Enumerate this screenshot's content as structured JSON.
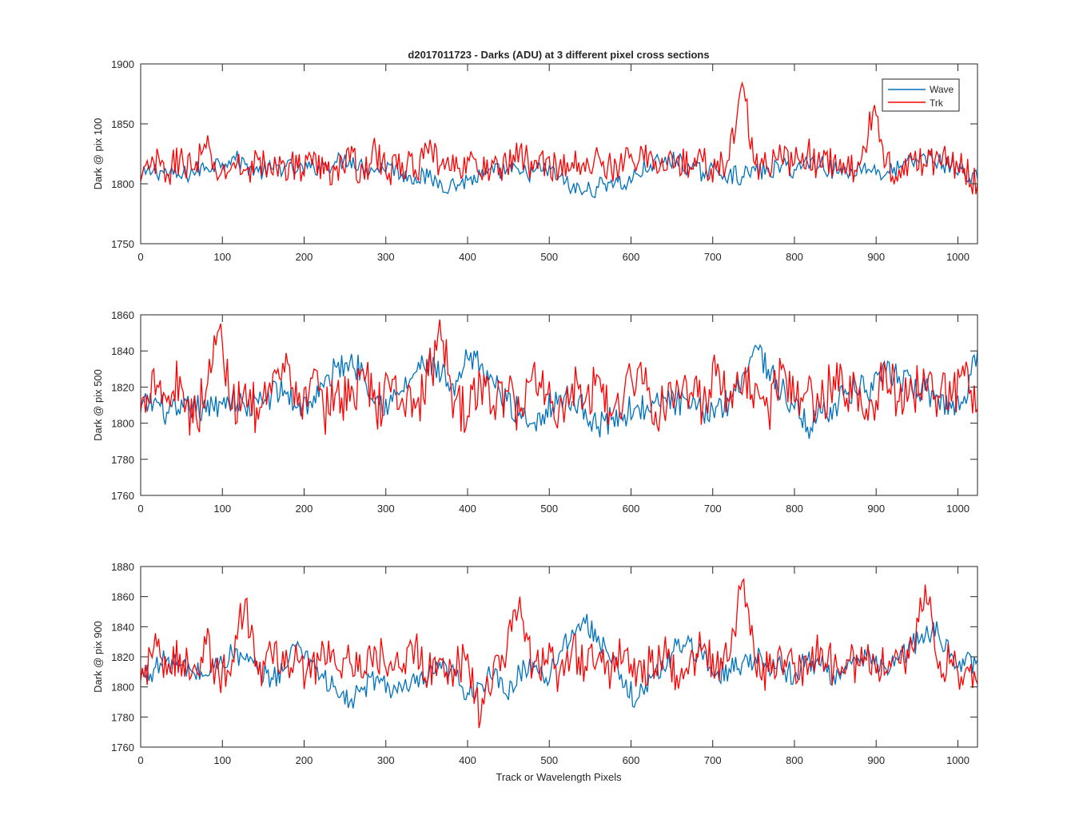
{
  "figure": {
    "title": "d2017011723 - Darks (ADU) at 3 different pixel cross sections",
    "xlabel": "Track or Wavelength Pixels"
  },
  "colors": {
    "wave": "#0072BD",
    "trk": "#FF0000",
    "axis": "#262626"
  },
  "legend": {
    "entries": [
      "Wave",
      "Trk"
    ],
    "location": "top-right of first panel"
  },
  "chart_data": [
    {
      "type": "line",
      "ylabel": "Dark @ pix 100",
      "xlim": [
        0,
        1024
      ],
      "ylim": [
        1750,
        1900
      ],
      "xticks": [
        0,
        100,
        200,
        300,
        400,
        500,
        600,
        700,
        800,
        900,
        1000
      ],
      "yticks": [
        1750,
        1800,
        1850,
        1900
      ],
      "series": [
        {
          "name": "Wave",
          "description": "noisy trace sampled every 16 px",
          "x": [
            0,
            16,
            32,
            48,
            64,
            80,
            96,
            112,
            128,
            144,
            160,
            176,
            192,
            208,
            224,
            240,
            256,
            272,
            288,
            304,
            320,
            336,
            352,
            368,
            384,
            400,
            416,
            432,
            448,
            464,
            480,
            496,
            512,
            528,
            544,
            560,
            576,
            592,
            608,
            624,
            640,
            656,
            672,
            688,
            704,
            720,
            736,
            752,
            768,
            784,
            800,
            816,
            832,
            848,
            864,
            880,
            896,
            912,
            928,
            944,
            960,
            976,
            992,
            1008,
            1024
          ],
          "values": [
            1805,
            1812,
            1809,
            1806,
            1810,
            1814,
            1818,
            1822,
            1816,
            1810,
            1812,
            1815,
            1811,
            1813,
            1816,
            1818,
            1821,
            1814,
            1812,
            1816,
            1808,
            1806,
            1805,
            1800,
            1799,
            1803,
            1806,
            1809,
            1812,
            1808,
            1810,
            1812,
            1806,
            1796,
            1794,
            1797,
            1803,
            1799,
            1808,
            1816,
            1818,
            1820,
            1813,
            1809,
            1812,
            1808,
            1806,
            1811,
            1810,
            1815,
            1812,
            1818,
            1817,
            1811,
            1809,
            1814,
            1812,
            1808,
            1813,
            1818,
            1823,
            1818,
            1815,
            1808,
            1804
          ]
        },
        {
          "name": "Trk",
          "description": "noisy trace sampled every 16 px",
          "x": [
            0,
            16,
            32,
            48,
            64,
            80,
            96,
            112,
            128,
            144,
            160,
            176,
            192,
            208,
            224,
            240,
            256,
            272,
            288,
            304,
            320,
            336,
            352,
            368,
            384,
            400,
            416,
            432,
            448,
            464,
            480,
            496,
            512,
            528,
            544,
            560,
            576,
            592,
            608,
            624,
            640,
            656,
            672,
            688,
            704,
            720,
            736,
            752,
            768,
            784,
            800,
            816,
            832,
            848,
            864,
            880,
            896,
            912,
            928,
            944,
            960,
            976,
            992,
            1008,
            1024
          ],
          "values": [
            1802,
            1818,
            1808,
            1822,
            1812,
            1830,
            1806,
            1816,
            1811,
            1820,
            1809,
            1817,
            1813,
            1823,
            1808,
            1815,
            1819,
            1812,
            1826,
            1809,
            1818,
            1812,
            1825,
            1816,
            1810,
            1822,
            1808,
            1817,
            1814,
            1829,
            1811,
            1820,
            1813,
            1818,
            1810,
            1824,
            1812,
            1819,
            1816,
            1827,
            1811,
            1821,
            1814,
            1818,
            1812,
            1820,
            1884,
            1816,
            1813,
            1822,
            1817,
            1826,
            1814,
            1819,
            1812,
            1816,
            1860,
            1816,
            1812,
            1820,
            1815,
            1824,
            1816,
            1813,
            1800
          ]
        }
      ]
    },
    {
      "type": "line",
      "ylabel": "Dark @ pix 500",
      "xlim": [
        0,
        1024
      ],
      "ylim": [
        1760,
        1860
      ],
      "xticks": [
        0,
        100,
        200,
        300,
        400,
        500,
        600,
        700,
        800,
        900,
        1000
      ],
      "yticks": [
        1760,
        1780,
        1800,
        1820,
        1840,
        1860
      ],
      "series": [
        {
          "name": "Wave",
          "description": "noisy trace sampled every 16 px",
          "x": [
            0,
            16,
            32,
            48,
            64,
            80,
            96,
            112,
            128,
            144,
            160,
            176,
            192,
            208,
            224,
            240,
            256,
            272,
            288,
            304,
            320,
            336,
            352,
            368,
            384,
            400,
            416,
            432,
            448,
            464,
            480,
            496,
            512,
            528,
            544,
            560,
            576,
            592,
            608,
            624,
            640,
            656,
            672,
            688,
            704,
            720,
            736,
            752,
            768,
            784,
            800,
            816,
            832,
            848,
            864,
            880,
            896,
            912,
            928,
            944,
            960,
            976,
            992,
            1008,
            1024
          ],
          "values": [
            1808,
            1812,
            1806,
            1805,
            1810,
            1806,
            1812,
            1814,
            1808,
            1811,
            1816,
            1818,
            1809,
            1812,
            1820,
            1831,
            1834,
            1829,
            1814,
            1810,
            1818,
            1828,
            1834,
            1826,
            1815,
            1836,
            1832,
            1822,
            1812,
            1806,
            1800,
            1808,
            1815,
            1812,
            1808,
            1798,
            1802,
            1805,
            1810,
            1806,
            1814,
            1812,
            1808,
            1806,
            1809,
            1812,
            1826,
            1843,
            1830,
            1818,
            1808,
            1798,
            1806,
            1810,
            1816,
            1820,
            1818,
            1828,
            1826,
            1820,
            1818,
            1814,
            1808,
            1815,
            1840
          ]
        },
        {
          "name": "Trk",
          "description": "noisy trace sampled every 16 px",
          "x": [
            0,
            16,
            32,
            48,
            64,
            80,
            96,
            112,
            128,
            144,
            160,
            176,
            192,
            208,
            224,
            240,
            256,
            272,
            288,
            304,
            320,
            336,
            352,
            368,
            384,
            400,
            416,
            432,
            448,
            464,
            480,
            496,
            512,
            528,
            544,
            560,
            576,
            592,
            608,
            624,
            640,
            656,
            672,
            688,
            704,
            720,
            736,
            752,
            768,
            784,
            800,
            816,
            832,
            848,
            864,
            880,
            896,
            912,
            928,
            944,
            960,
            976,
            992,
            1008,
            1024
          ],
          "values": [
            1806,
            1830,
            1812,
            1826,
            1800,
            1818,
            1852,
            1808,
            1822,
            1802,
            1816,
            1828,
            1810,
            1825,
            1806,
            1818,
            1812,
            1830,
            1806,
            1822,
            1814,
            1808,
            1826,
            1846,
            1812,
            1804,
            1824,
            1810,
            1818,
            1806,
            1830,
            1816,
            1808,
            1822,
            1812,
            1826,
            1804,
            1818,
            1830,
            1812,
            1807,
            1824,
            1816,
            1810,
            1826,
            1812,
            1816,
            1822,
            1806,
            1830,
            1812,
            1818,
            1808,
            1826,
            1814,
            1820,
            1809,
            1828,
            1812,
            1818,
            1822,
            1815,
            1812,
            1826,
            1808
          ]
        }
      ]
    },
    {
      "type": "line",
      "ylabel": "Dark @ pix 900",
      "xlim": [
        0,
        1024
      ],
      "ylim": [
        1760,
        1880
      ],
      "xticks": [
        0,
        100,
        200,
        300,
        400,
        500,
        600,
        700,
        800,
        900,
        1000
      ],
      "yticks": [
        1760,
        1780,
        1800,
        1820,
        1840,
        1860,
        1880
      ],
      "series": [
        {
          "name": "Wave",
          "description": "noisy trace sampled every 16 px",
          "x": [
            0,
            16,
            32,
            48,
            64,
            80,
            96,
            112,
            128,
            144,
            160,
            176,
            192,
            208,
            224,
            240,
            256,
            272,
            288,
            304,
            320,
            336,
            352,
            368,
            384,
            400,
            416,
            432,
            448,
            464,
            480,
            496,
            512,
            528,
            544,
            560,
            576,
            592,
            608,
            624,
            640,
            656,
            672,
            688,
            704,
            720,
            736,
            752,
            768,
            784,
            800,
            816,
            832,
            848,
            864,
            880,
            896,
            912,
            928,
            944,
            960,
            976,
            992,
            1008,
            1024
          ],
          "values": [
            1806,
            1812,
            1818,
            1814,
            1810,
            1808,
            1816,
            1822,
            1818,
            1810,
            1806,
            1812,
            1830,
            1818,
            1806,
            1796,
            1790,
            1798,
            1806,
            1800,
            1797,
            1802,
            1806,
            1812,
            1808,
            1796,
            1802,
            1808,
            1794,
            1810,
            1816,
            1806,
            1822,
            1838,
            1842,
            1834,
            1816,
            1800,
            1792,
            1806,
            1812,
            1828,
            1830,
            1818,
            1808,
            1812,
            1816,
            1820,
            1816,
            1812,
            1808,
            1818,
            1814,
            1808,
            1812,
            1816,
            1820,
            1812,
            1818,
            1828,
            1834,
            1836,
            1822,
            1814,
            1818
          ]
        },
        {
          "name": "Trk",
          "description": "noisy trace sampled every 16 px",
          "x": [
            0,
            16,
            32,
            48,
            64,
            80,
            96,
            112,
            128,
            144,
            160,
            176,
            192,
            208,
            224,
            240,
            256,
            272,
            288,
            304,
            320,
            336,
            352,
            368,
            384,
            400,
            416,
            432,
            448,
            464,
            480,
            496,
            512,
            528,
            544,
            560,
            576,
            592,
            608,
            624,
            640,
            656,
            672,
            688,
            704,
            720,
            736,
            752,
            768,
            784,
            800,
            816,
            832,
            848,
            864,
            880,
            896,
            912,
            928,
            944,
            960,
            976,
            992,
            1008,
            1024
          ],
          "values": [
            1804,
            1826,
            1808,
            1822,
            1812,
            1828,
            1806,
            1818,
            1858,
            1808,
            1822,
            1812,
            1818,
            1806,
            1826,
            1812,
            1816,
            1806,
            1824,
            1814,
            1810,
            1828,
            1808,
            1818,
            1812,
            1822,
            1778,
            1816,
            1824,
            1860,
            1812,
            1818,
            1808,
            1826,
            1814,
            1820,
            1810,
            1824,
            1812,
            1816,
            1822,
            1808,
            1818,
            1826,
            1812,
            1818,
            1870,
            1814,
            1810,
            1822,
            1816,
            1808,
            1826,
            1812,
            1818,
            1814,
            1822,
            1810,
            1816,
            1826,
            1868,
            1812,
            1818,
            1808,
            1802
          ]
        }
      ]
    }
  ]
}
